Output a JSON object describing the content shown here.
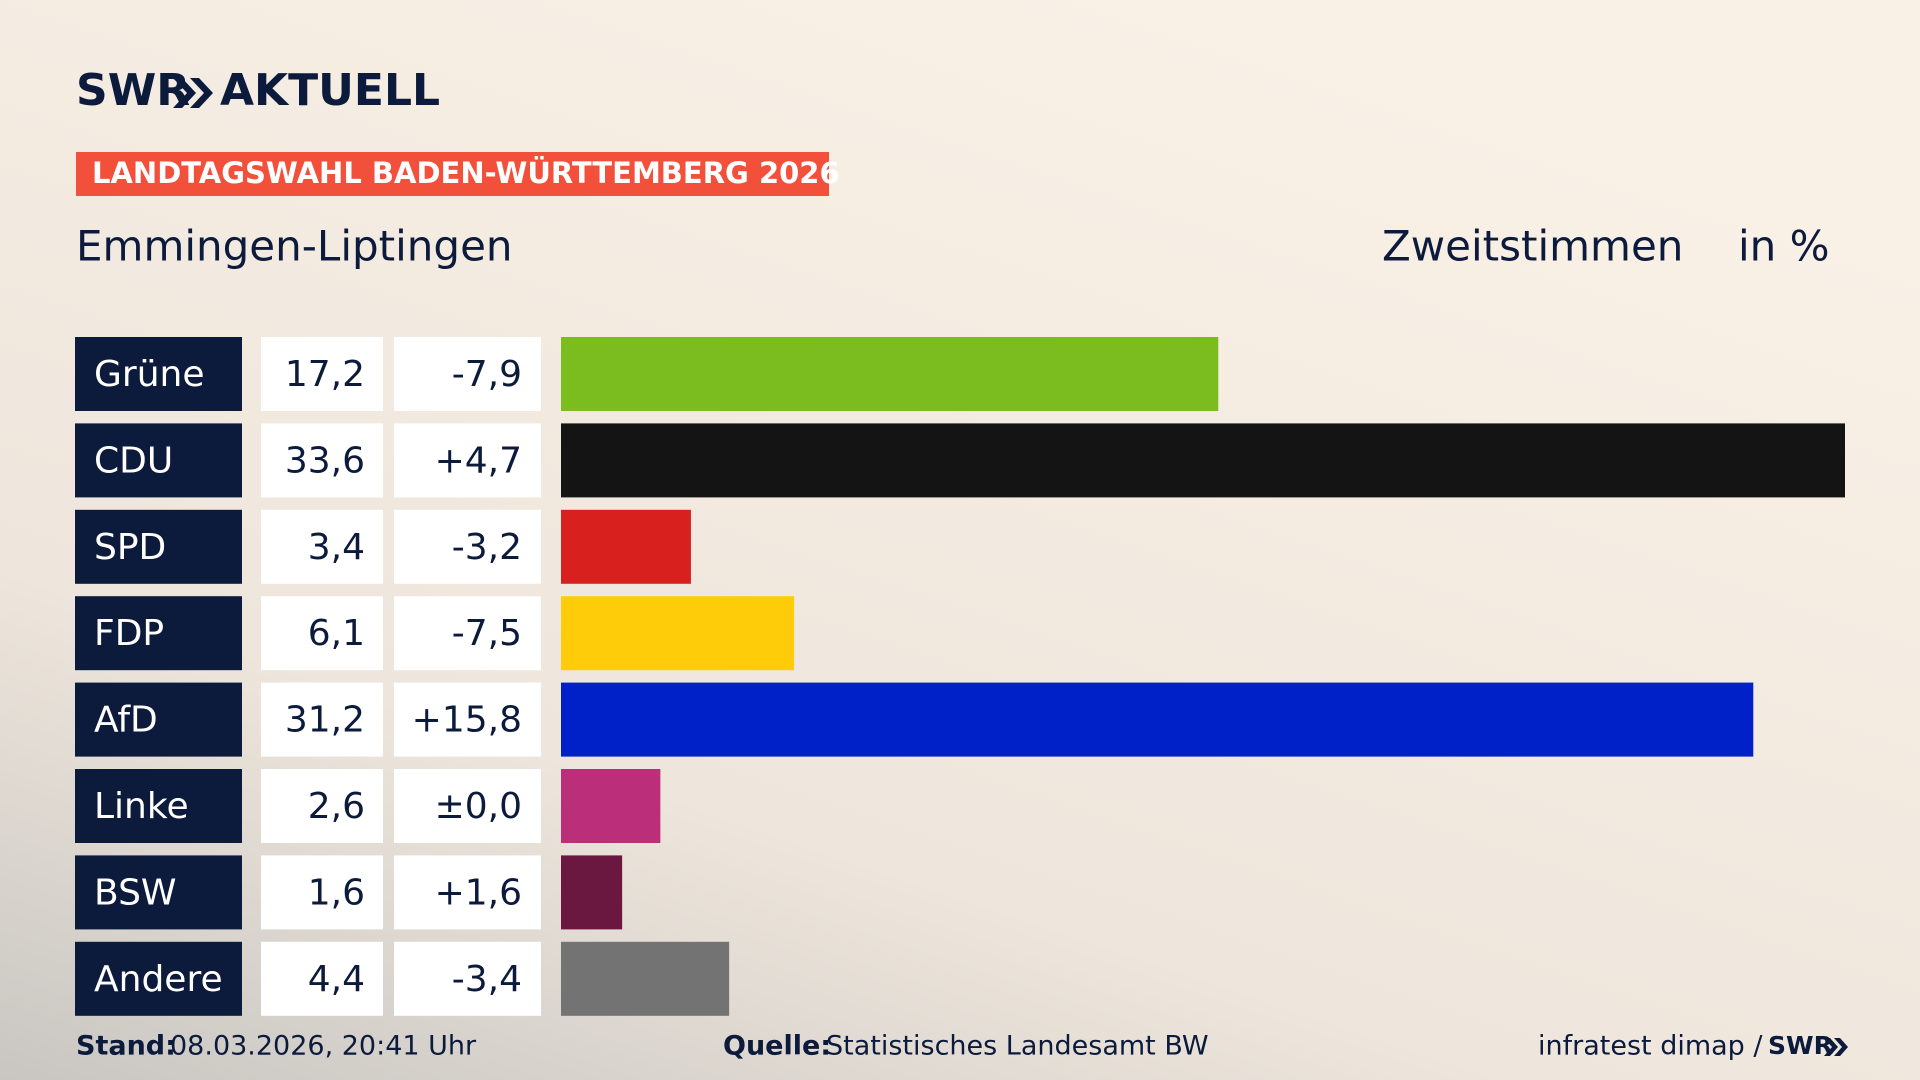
{
  "brand": {
    "name": "SWR",
    "product": "AKTUELL"
  },
  "chart_data": {
    "type": "bar",
    "orientation": "horizontal",
    "header": "LANDTAGSWAHL BADEN-WÜRTTEMBERG 2026",
    "title": "Emmingen-Liptingen",
    "measure": "Zweitstimmen",
    "unit": "in %",
    "categories": [
      "Grüne",
      "CDU",
      "SPD",
      "FDP",
      "AfD",
      "Linke",
      "BSW",
      "Andere"
    ],
    "colors": [
      "#7bbd1f",
      "#141414",
      "#d8201f",
      "#fecc08",
      "#0021c8",
      "#bb2f7a",
      "#6a1840",
      "#737373"
    ],
    "values": [
      17.2,
      33.6,
      3.4,
      6.1,
      31.2,
      2.6,
      1.6,
      4.4
    ],
    "value_labels": [
      "17,2",
      "33,6",
      "3,4",
      "6,1",
      "31,2",
      "2,6",
      "1,6",
      "4,4"
    ],
    "changes": [
      -7.9,
      4.7,
      -3.2,
      -7.5,
      15.8,
      0,
      1.6,
      -3.4
    ],
    "change_labels": [
      "-7,9",
      "+4,7",
      "-3,2",
      "-7,5",
      "+15,8",
      "±0,0",
      "+1,6",
      "-3,4"
    ],
    "xlim": [
      0,
      33.6
    ]
  },
  "footer": {
    "stand_label": "Stand:",
    "stand": "08.03.2026, 20:41 Uhr",
    "source_label": "Quelle:",
    "source": "Statistisches Landesamt BW",
    "credit": "infratest dimap /",
    "credit_brand": "SWR"
  }
}
